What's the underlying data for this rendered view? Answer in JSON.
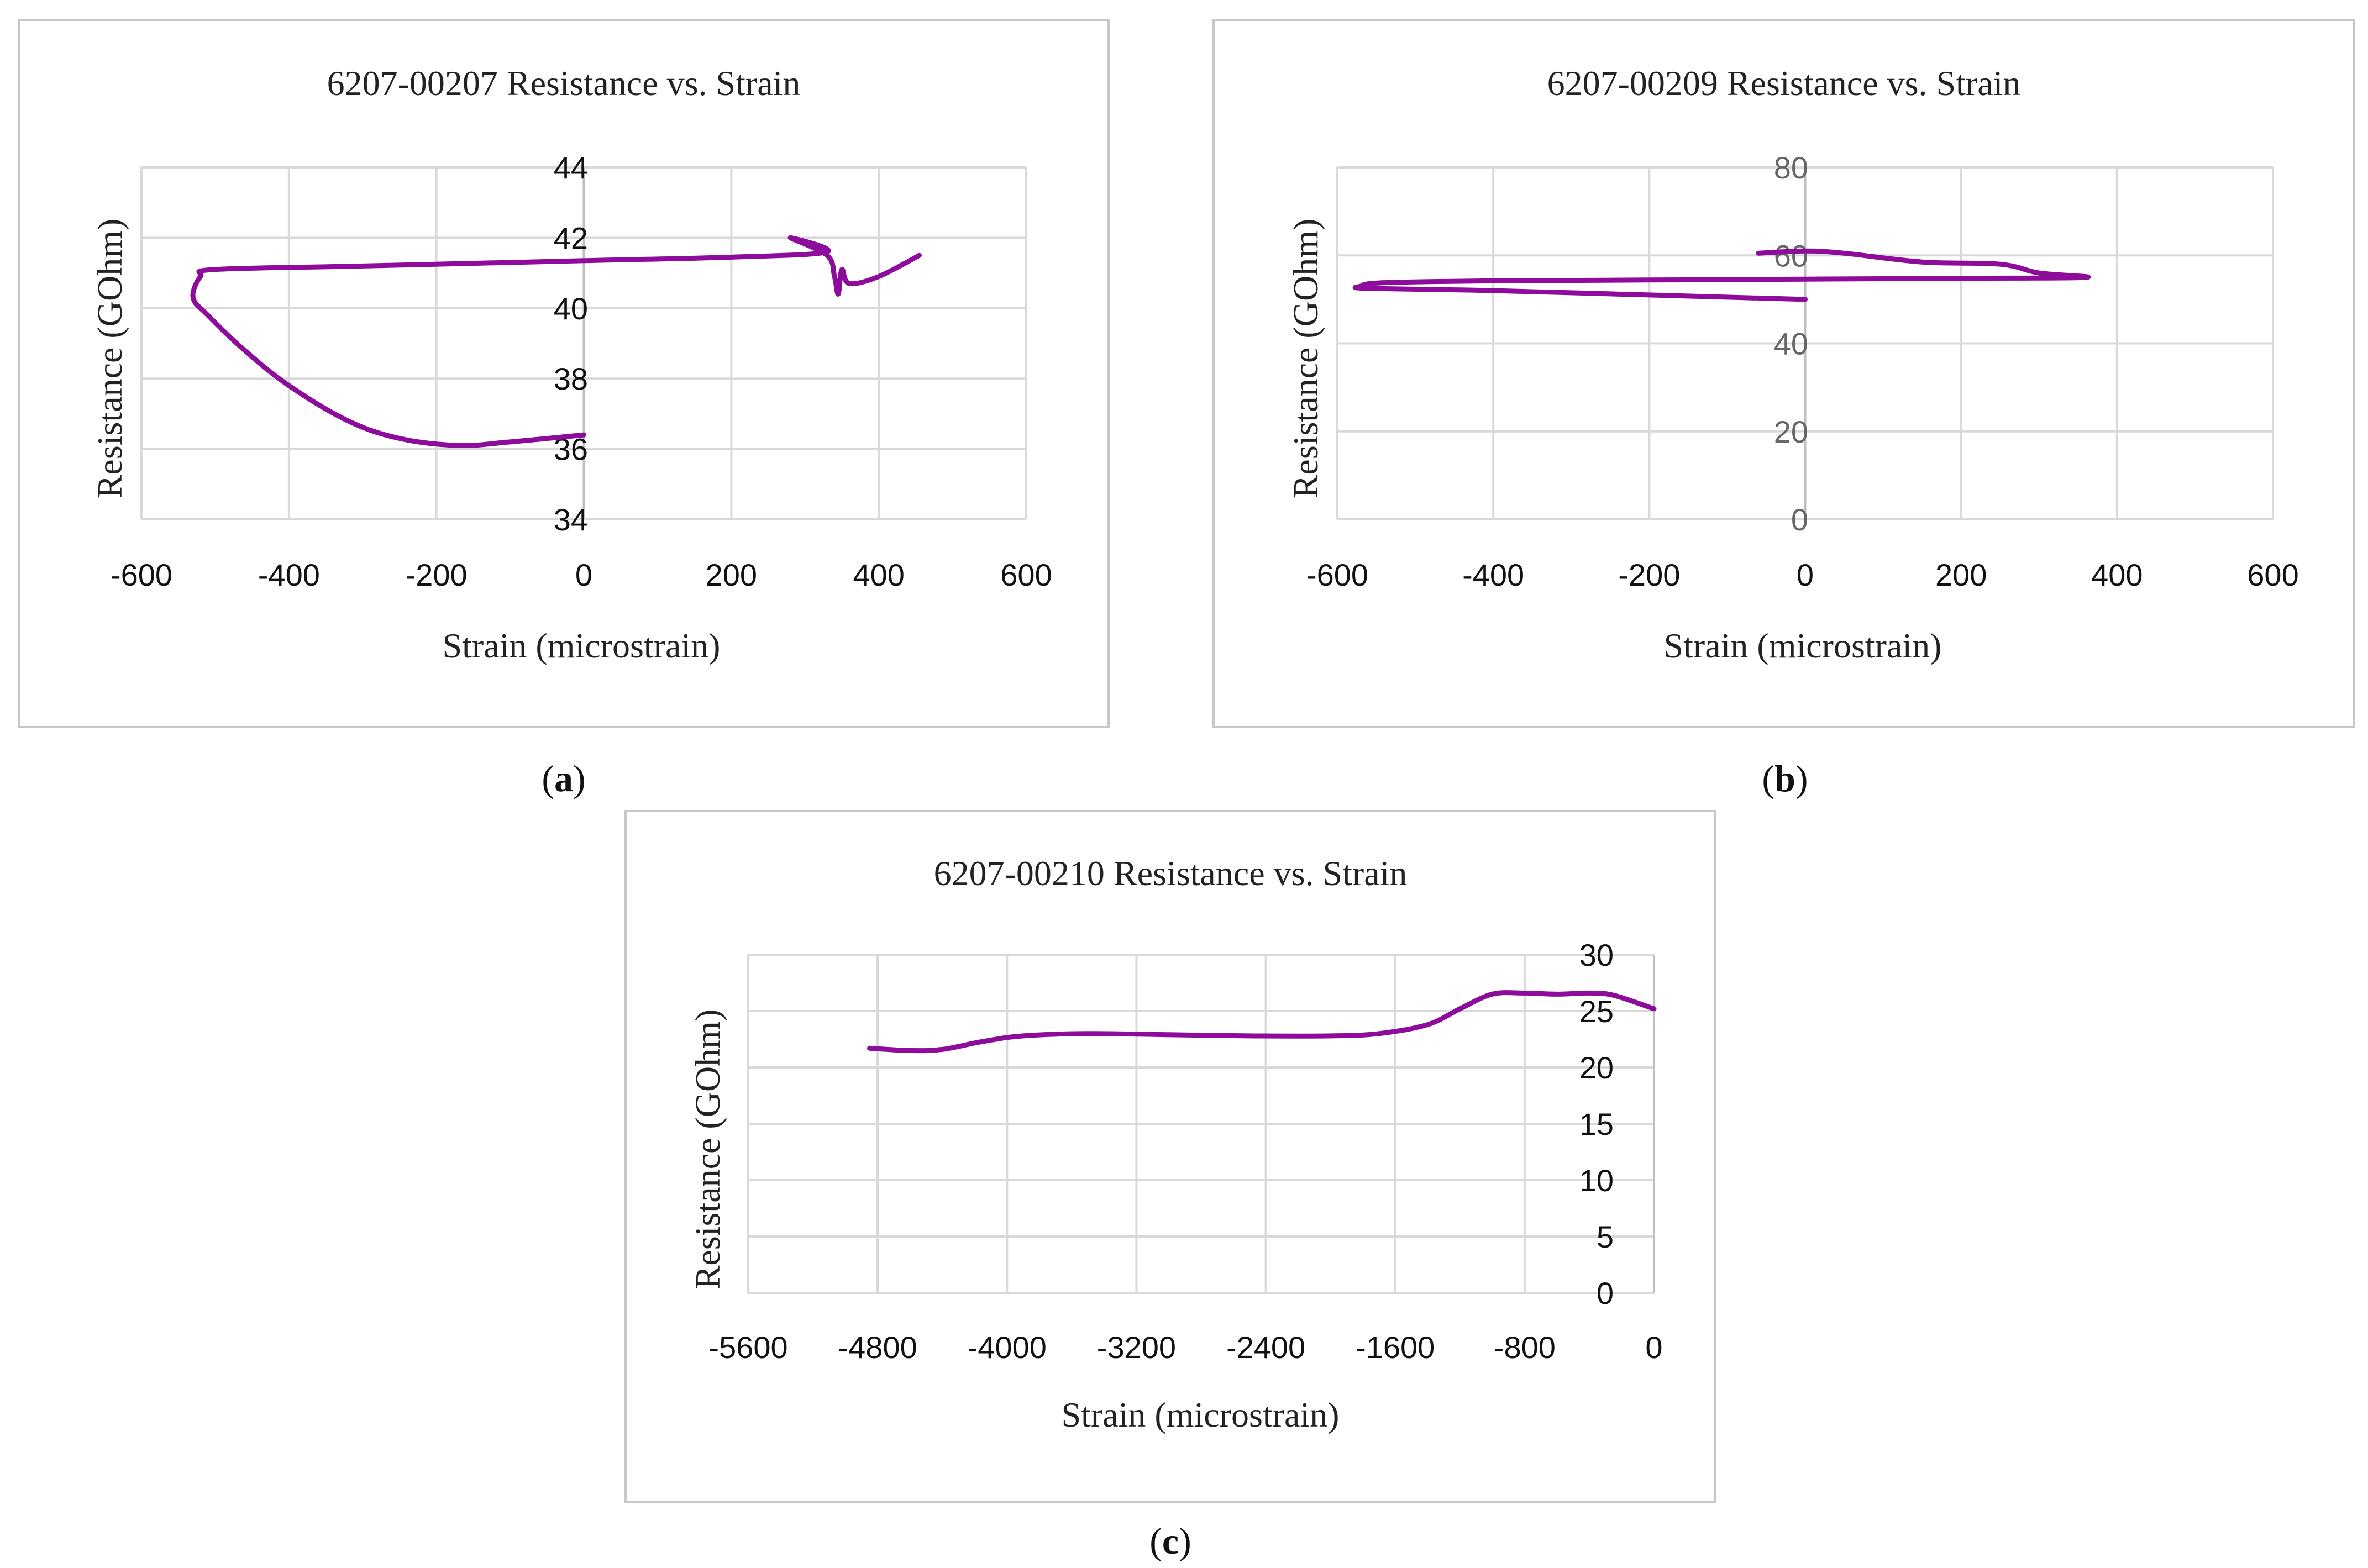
{
  "chart_data": [
    {
      "type": "line",
      "panel_label": "a",
      "title": "6207-00207 Resistance vs. Strain",
      "xlabel": "Strain (microstrain)",
      "ylabel": "Resistance (GOhm)",
      "xlim": [
        -600,
        600
      ],
      "ylim": [
        34,
        44
      ],
      "xticks": [
        -600,
        -400,
        -200,
        0,
        200,
        400,
        600
      ],
      "yticks": [
        34,
        36,
        38,
        40,
        42,
        44
      ],
      "xtick_labels": [
        "-600",
        "-400",
        "-200",
        "0",
        "200",
        "400",
        "600"
      ],
      "ytick_labels": [
        "34",
        "36",
        "38",
        "40",
        "42",
        "44"
      ],
      "series": [
        {
          "name": "Resistance",
          "x": [
            0,
            -100,
            -170,
            -250,
            -320,
            -400,
            -460,
            -510,
            -530,
            -520,
            -500,
            -300,
            0,
            200,
            330,
            280,
            330,
            340,
            345,
            350,
            360,
            400,
            455
          ],
          "y": [
            36.4,
            36.2,
            36.1,
            36.3,
            36.8,
            37.8,
            38.8,
            39.8,
            40.3,
            40.9,
            41.1,
            41.2,
            41.35,
            41.45,
            41.6,
            42.0,
            41.5,
            40.9,
            40.4,
            41.1,
            40.7,
            40.9,
            41.5
          ]
        }
      ],
      "colors": {
        "line": "#8E0C9B"
      }
    },
    {
      "type": "line",
      "panel_label": "b",
      "title": "6207-00209 Resistance vs. Strain",
      "xlabel": "Strain (microstrain)",
      "ylabel": "Resistance (GOhm)",
      "xlim": [
        -600,
        600
      ],
      "ylim": [
        0,
        80
      ],
      "xticks": [
        -600,
        -400,
        -200,
        0,
        200,
        400,
        600
      ],
      "yticks": [
        0,
        20,
        40,
        60,
        80
      ],
      "xtick_labels": [
        "-600",
        "-400",
        "-200",
        "0",
        "200",
        "400",
        "600"
      ],
      "ytick_labels": [
        "0",
        "20",
        "40",
        "60",
        "80"
      ],
      "series": [
        {
          "name": "Resistance",
          "x": [
            -60,
            0,
            50,
            150,
            250,
            300,
            360,
            200,
            0,
            -200,
            -400,
            -540,
            -570,
            -560,
            -400,
            -200,
            0
          ],
          "y": [
            60.5,
            61,
            60.5,
            58.5,
            58,
            56,
            55,
            54.8,
            54.6,
            54.4,
            54.2,
            53.8,
            53,
            52.5,
            52,
            51,
            50
          ]
        }
      ],
      "colors": {
        "line": "#8E0C9B"
      }
    },
    {
      "type": "line",
      "panel_label": "c",
      "title": "6207-00210 Resistance vs. Strain",
      "xlabel": "Strain (microstrain)",
      "ylabel": "Resistance (GOhm)",
      "xlim": [
        -5600,
        0
      ],
      "ylim": [
        0,
        30
      ],
      "xticks": [
        -5600,
        -4800,
        -4000,
        -3200,
        -2400,
        -1600,
        -800,
        0
      ],
      "yticks": [
        0,
        5,
        10,
        15,
        20,
        25,
        30
      ],
      "xtick_labels": [
        "-5600",
        "-4800",
        "-4000",
        "-3200",
        "-2400",
        "-1600",
        "-800",
        "0"
      ],
      "ytick_labels": [
        "0",
        "5",
        "10",
        "15",
        "20",
        "25",
        "30"
      ],
      "series": [
        {
          "name": "Resistance",
          "x": [
            -4850,
            -4600,
            -4400,
            -4150,
            -3900,
            -3500,
            -3000,
            -2500,
            -2000,
            -1700,
            -1400,
            -1200,
            -1000,
            -800,
            -600,
            -400,
            -250,
            0
          ],
          "y": [
            21.7,
            21.5,
            21.6,
            22.3,
            22.8,
            23.0,
            22.9,
            22.8,
            22.8,
            23.0,
            23.8,
            25.2,
            26.5,
            26.6,
            26.5,
            26.6,
            26.4,
            25.2
          ]
        }
      ],
      "colors": {
        "line": "#8E0C9B"
      }
    }
  ]
}
